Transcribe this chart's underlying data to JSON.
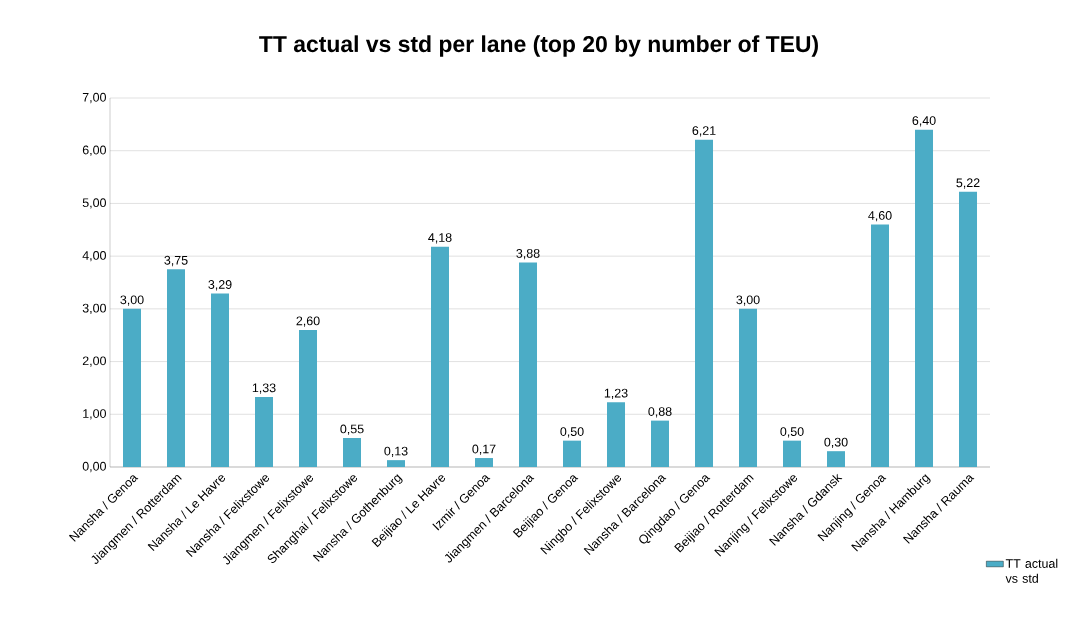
{
  "chart_data": {
    "type": "bar",
    "title": "TT actual vs std per lane (top 20 by number of TEU)",
    "categories": [
      "Nansha / Genoa",
      "Jiangmen / Rotterdam",
      "Nansha / Le Havre",
      "Nansha / Felixstowe",
      "Jiangmen / Felixstowe",
      "Shanghai / Felixstowe",
      "Nansha / Gothenburg",
      "Beijiao / Le Havre",
      "Izmir / Genoa",
      "Jiangmen / Barcelona",
      "Beijiao / Genoa",
      "Ningbo / Felixstowe",
      "Nansha / Barcelona",
      "Qingdao / Genoa",
      "Beijiao / Rotterdam",
      "Nanjing / Felixstowe",
      "Nansha / Gdansk",
      "Nanjing / Genoa",
      "Nansha / Hamburg",
      "Nansha / Rauma"
    ],
    "series": [
      {
        "name": "TT actual vs std",
        "color": "#4bacc6",
        "values": [
          3.0,
          3.75,
          3.29,
          1.33,
          2.6,
          0.55,
          0.13,
          4.18,
          0.17,
          3.88,
          0.5,
          1.23,
          0.88,
          6.21,
          3.0,
          0.5,
          0.3,
          4.6,
          6.4,
          5.22
        ],
        "value_labels": [
          "3,00",
          "3,75",
          "3,29",
          "1,33",
          "2,60",
          "0,55",
          "0,13",
          "4,18",
          "0,17",
          "3,88",
          "0,50",
          "1,23",
          "0,88",
          "6,21",
          "3,00",
          "0,50",
          "0,30",
          "4,60",
          "6,40",
          "5,22"
        ]
      }
    ],
    "ylim": [
      0,
      7
    ],
    "yticks": [
      {
        "value": 0,
        "label": "0,00"
      },
      {
        "value": 1,
        "label": "1,00"
      },
      {
        "value": 2,
        "label": "2,00"
      },
      {
        "value": 3,
        "label": "3,00"
      },
      {
        "value": 4,
        "label": "4,00"
      },
      {
        "value": 5,
        "label": "5,00"
      },
      {
        "value": 6,
        "label": "6,00"
      },
      {
        "value": 7,
        "label": "7,00"
      }
    ],
    "grid": "y",
    "legend": "bottom right"
  }
}
